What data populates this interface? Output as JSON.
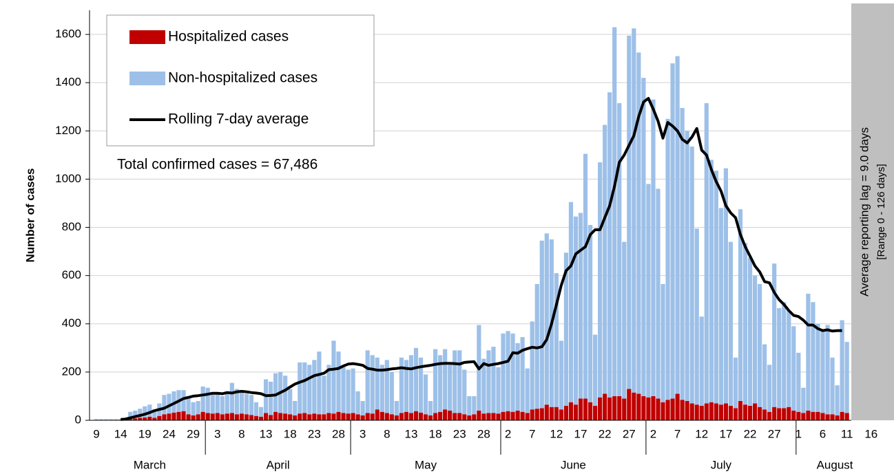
{
  "chart_data": {
    "type": "bar",
    "stacked": true,
    "y_label": "Number of cases",
    "annotation": "Total confirmed cases = 67,486",
    "side_note": {
      "title": "Average reporting lag = 9.0 days",
      "subtitle": "[Range 0 - 126 days]",
      "color": "#bfbfbf"
    },
    "ylim": [
      0,
      1700
    ],
    "yticks": [
      0,
      200,
      400,
      600,
      800,
      1000,
      1200,
      1400,
      1600
    ],
    "grid": true,
    "legend": "top-left",
    "months": [
      "March",
      "April",
      "May",
      "June",
      "July",
      "August"
    ],
    "categories": [
      "9",
      null,
      null,
      null,
      null,
      "14",
      null,
      null,
      null,
      null,
      "19",
      null,
      null,
      null,
      null,
      "24",
      null,
      null,
      null,
      null,
      "29",
      null,
      null,
      null,
      null,
      "3",
      null,
      null,
      null,
      null,
      "8",
      null,
      null,
      null,
      null,
      "13",
      null,
      null,
      null,
      null,
      "18",
      null,
      null,
      null,
      null,
      "23",
      null,
      null,
      null,
      null,
      "28",
      null,
      null,
      null,
      null,
      "3",
      null,
      null,
      null,
      null,
      "8",
      null,
      null,
      null,
      null,
      "13",
      null,
      null,
      null,
      null,
      "18",
      null,
      null,
      null,
      null,
      "23",
      null,
      null,
      null,
      null,
      "28",
      null,
      null,
      null,
      null,
      "2",
      null,
      null,
      null,
      null,
      "7",
      null,
      null,
      null,
      null,
      "12",
      null,
      null,
      null,
      null,
      "17",
      null,
      null,
      null,
      null,
      "22",
      null,
      null,
      null,
      null,
      "27",
      null,
      null,
      null,
      null,
      "2",
      null,
      null,
      null,
      null,
      "7",
      null,
      null,
      null,
      null,
      "12",
      null,
      null,
      null,
      null,
      "17",
      null,
      null,
      null,
      null,
      "22",
      null,
      null,
      null,
      null,
      "27",
      null,
      null,
      null,
      null,
      "1",
      null,
      null,
      null,
      null,
      "6",
      null,
      null,
      null,
      null,
      "11",
      null,
      null,
      null,
      null,
      "16"
    ],
    "series": [
      {
        "name": "Hospitalized cases",
        "type": "bar",
        "color": "#c00000",
        "values": [
          1,
          1,
          1,
          1,
          1,
          2,
          2,
          5,
          8,
          10,
          12,
          15,
          10,
          18,
          25,
          28,
          32,
          35,
          38,
          25,
          20,
          25,
          35,
          30,
          28,
          30,
          25,
          28,
          30,
          25,
          28,
          25,
          22,
          18,
          15,
          30,
          22,
          35,
          30,
          28,
          25,
          20,
          28,
          30,
          25,
          28,
          25,
          25,
          30,
          28,
          35,
          30,
          28,
          30,
          25,
          20,
          30,
          28,
          45,
          35,
          30,
          25,
          20,
          30,
          35,
          30,
          38,
          32,
          25,
          20,
          30,
          35,
          45,
          40,
          30,
          30,
          25,
          20,
          25,
          40,
          28,
          30,
          30,
          28,
          35,
          38,
          35,
          40,
          35,
          30,
          45,
          48,
          50,
          65,
          55,
          55,
          45,
          60,
          75,
          65,
          90,
          90,
          75,
          60,
          95,
          110,
          95,
          100,
          100,
          90,
          130,
          115,
          110,
          100,
          95,
          100,
          90,
          75,
          85,
          90,
          110,
          85,
          80,
          70,
          65,
          60,
          70,
          75,
          70,
          65,
          70,
          60,
          50,
          80,
          65,
          60,
          70,
          55,
          45,
          35,
          55,
          50,
          50,
          55,
          40,
          35,
          30,
          40,
          35,
          35,
          30,
          25,
          25,
          20,
          35,
          30,
          null,
          null,
          null,
          null,
          null
        ]
      },
      {
        "name": "Non-hospitalized cases",
        "type": "bar",
        "color": "#9dc0e8",
        "values": [
          4,
          4,
          4,
          4,
          4,
          3,
          3,
          30,
          32,
          38,
          46,
          50,
          35,
          52,
          80,
          82,
          88,
          90,
          87,
          75,
          55,
          55,
          105,
          105,
          82,
          80,
          75,
          87,
          125,
          105,
          92,
          85,
          83,
          57,
          40,
          140,
          138,
          160,
          170,
          157,
          105,
          60,
          212,
          210,
          205,
          222,
          260,
          160,
          200,
          302,
          250,
          190,
          182,
          185,
          95,
          60,
          260,
          242,
          215,
          195,
          220,
          175,
          60,
          230,
          215,
          240,
          262,
          228,
          165,
          60,
          265,
          235,
          250,
          190,
          260,
          260,
          185,
          80,
          75,
          355,
          227,
          260,
          275,
          192,
          325,
          332,
          325,
          280,
          310,
          185,
          365,
          517,
          695,
          710,
          695,
          555,
          285,
          635,
          830,
          780,
          770,
          1015,
          735,
          295,
          975,
          1115,
          1265,
          1530,
          1215,
          650,
          1465,
          1510,
          1415,
          1320,
          885,
          1230,
          870,
          490,
          1165,
          1390,
          1400,
          1210,
          1120,
          1065,
          730,
          370,
          1245,
          1005,
          965,
          815,
          975,
          680,
          210,
          795,
          670,
          615,
          530,
          510,
          270,
          195,
          595,
          415,
          440,
          400,
          350,
          245,
          105,
          485,
          455,
          365,
          345,
          370,
          235,
          125,
          380,
          295,
          null,
          null,
          null,
          null,
          null
        ]
      },
      {
        "name": "Rolling 7-day average",
        "type": "line",
        "color": "#000000",
        "values": [
          null,
          null,
          null,
          null,
          null,
          3,
          5,
          10,
          15,
          20,
          25,
          32,
          40,
          45,
          50,
          60,
          70,
          80,
          90,
          95,
          100,
          102,
          105,
          108,
          112,
          112,
          110,
          115,
          113,
          118,
          120,
          118,
          115,
          113,
          110,
          102,
          103,
          105,
          115,
          125,
          138,
          150,
          158,
          165,
          175,
          185,
          190,
          195,
          210,
          212,
          215,
          225,
          233,
          235,
          232,
          228,
          215,
          212,
          208,
          208,
          210,
          213,
          215,
          218,
          215,
          213,
          218,
          222,
          225,
          228,
          232,
          235,
          236,
          236,
          235,
          233,
          240,
          242,
          243,
          213,
          235,
          228,
          232,
          235,
          240,
          245,
          280,
          278,
          290,
          297,
          303,
          300,
          305,
          335,
          400,
          480,
          560,
          620,
          640,
          690,
          705,
          720,
          770,
          790,
          790,
          840,
          890,
          970,
          1070,
          1100,
          1140,
          1180,
          1260,
          1320,
          1335,
          1290,
          1240,
          1170,
          1235,
          1220,
          1200,
          1165,
          1150,
          1175,
          1210,
          1120,
          1100,
          1040,
          990,
          950,
          890,
          860,
          840,
          770,
          720,
          680,
          640,
          615,
          575,
          570,
          530,
          500,
          480,
          455,
          435,
          430,
          415,
          395,
          395,
          380,
          372,
          375,
          370,
          372,
          372,
          null,
          null,
          null,
          null,
          null,
          null
        ]
      }
    ]
  }
}
